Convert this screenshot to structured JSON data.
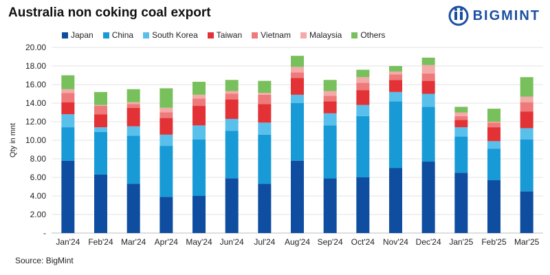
{
  "brand": {
    "name": "BIGMINT",
    "color": "#1a4fa0"
  },
  "chart_data": {
    "type": "bar",
    "stacked": true,
    "title": "Australia non coking coal export",
    "xlabel": "",
    "ylabel": "Qty in mnt",
    "ylim": [
      0,
      20
    ],
    "yticks": [
      "-",
      "2.00",
      "4.00",
      "6.00",
      "8.00",
      "10.00",
      "12.00",
      "14.00",
      "16.00",
      "18.00",
      "20.00"
    ],
    "grid": true,
    "legend_position": "top",
    "categories": [
      "Jan'24",
      "Feb'24",
      "Mar'24",
      "Apr'24",
      "May'24",
      "Jun'24",
      "Jul'24",
      "Aug'24",
      "Sep'24",
      "Oct'24",
      "Nov'24",
      "Dec'24",
      "Jan'25",
      "Feb'25",
      "Mar'25"
    ],
    "series": [
      {
        "name": "Japan",
        "color": "#0e4d9f",
        "values": [
          7.8,
          6.3,
          5.3,
          3.9,
          4.0,
          5.9,
          5.3,
          7.8,
          5.9,
          6.0,
          7.0,
          7.7,
          6.5,
          5.7,
          4.5
        ]
      },
      {
        "name": "China",
        "color": "#189ad6",
        "values": [
          3.6,
          4.6,
          5.2,
          5.5,
          6.1,
          5.1,
          5.3,
          6.2,
          5.7,
          6.6,
          7.2,
          5.9,
          3.9,
          3.4,
          5.6
        ]
      },
      {
        "name": "South Korea",
        "color": "#59c0ec",
        "values": [
          1.4,
          0.5,
          1.0,
          1.2,
          1.5,
          1.3,
          1.3,
          0.9,
          1.3,
          1.2,
          1.0,
          1.4,
          1.0,
          0.8,
          1.2
        ]
      },
      {
        "name": "Taiwan",
        "color": "#e23236",
        "values": [
          1.3,
          1.4,
          2.0,
          1.8,
          2.1,
          2.1,
          2.0,
          1.8,
          1.3,
          1.6,
          1.3,
          1.4,
          0.8,
          1.5,
          1.8
        ]
      },
      {
        "name": "Vietnam",
        "color": "#ee7a7a",
        "values": [
          1.0,
          0.9,
          0.4,
          0.6,
          0.8,
          0.6,
          1.0,
          0.6,
          0.6,
          0.8,
          0.6,
          0.8,
          0.4,
          0.5,
          1.0
        ]
      },
      {
        "name": "Malaysia",
        "color": "#f4aaa8",
        "values": [
          0.4,
          0.1,
          0.2,
          0.5,
          0.4,
          0.3,
          0.2,
          0.6,
          0.5,
          0.6,
          0.3,
          0.9,
          0.4,
          0.1,
          0.6
        ]
      },
      {
        "name": "Others",
        "color": "#78c05c",
        "values": [
          1.5,
          1.4,
          1.4,
          2.1,
          1.4,
          1.2,
          1.3,
          1.2,
          1.2,
          0.8,
          0.6,
          0.8,
          0.6,
          1.4,
          2.1
        ]
      }
    ]
  },
  "source": "Source: BigMint"
}
